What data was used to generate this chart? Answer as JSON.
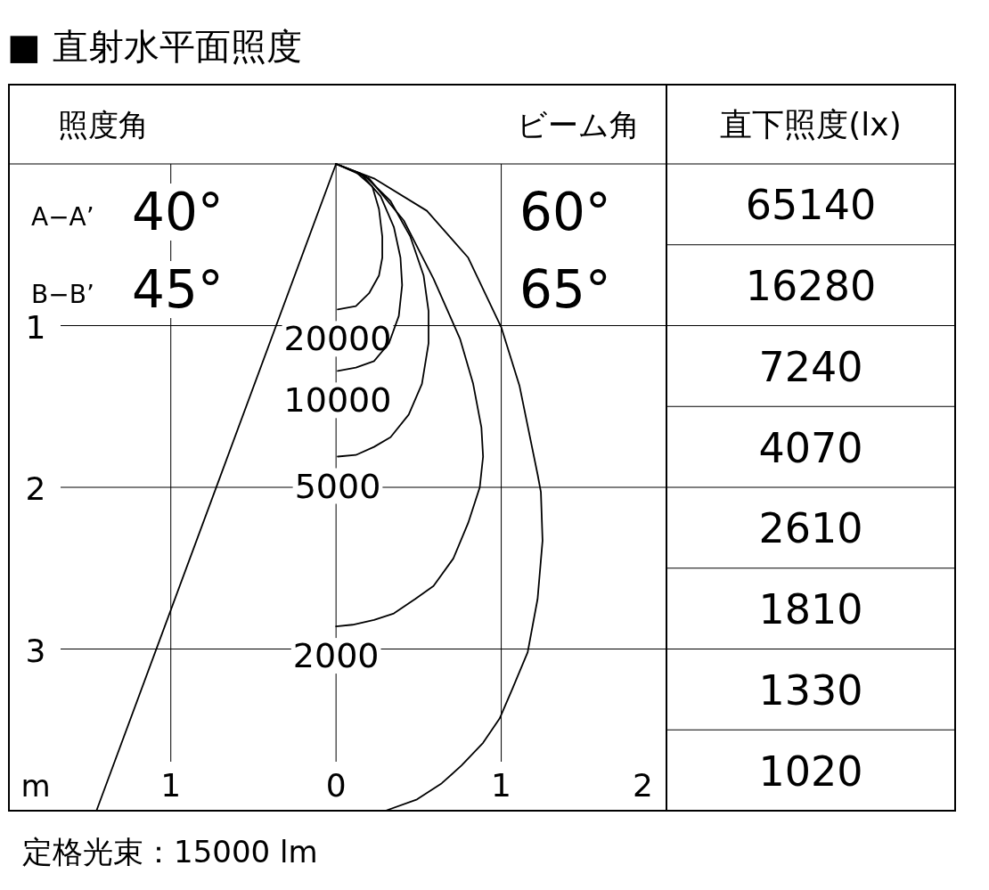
{
  "chart_data": [
    {
      "type": "line",
      "title": "■ 直射水平面照度",
      "xlabel": "m",
      "xlim": [
        -1.98,
        2
      ],
      "ylim": [
        4,
        0
      ],
      "xticks": [
        {
          "value": -1,
          "label": "1"
        },
        0,
        1,
        2
      ],
      "yticks": [
        1,
        2,
        3
      ],
      "grid": true,
      "series": [
        {
          "name": "20000",
          "color": "#000000",
          "x": [
            0,
            0.12,
            0.22,
            0.26,
            0.28,
            0.28,
            0.26,
            0.2,
            0.12,
            0.01
          ],
          "values": [
            0,
            0.05,
            0.14,
            0.28,
            0.45,
            0.58,
            0.69,
            0.8,
            0.88,
            0.9
          ]
        },
        {
          "name": "10000",
          "color": "#000000",
          "x": [
            0,
            0.15,
            0.27,
            0.35,
            0.39,
            0.4,
            0.38,
            0.32,
            0.23,
            0.12,
            0.01
          ],
          "values": [
            0,
            0.06,
            0.2,
            0.39,
            0.58,
            0.75,
            0.94,
            1.11,
            1.22,
            1.26,
            1.28
          ]
        },
        {
          "name": "5000",
          "color": "#000000",
          "x": [
            0,
            0.17,
            0.33,
            0.45,
            0.53,
            0.56,
            0.56,
            0.52,
            0.44,
            0.33,
            0.23,
            0.12,
            0.01
          ],
          "values": [
            0,
            0.07,
            0.23,
            0.45,
            0.69,
            0.91,
            1.11,
            1.36,
            1.55,
            1.69,
            1.75,
            1.8,
            1.81
          ]
        },
        {
          "name": "2000",
          "color": "#000000",
          "x": [
            0,
            0.2,
            0.41,
            0.59,
            0.75,
            0.83,
            0.88,
            0.89,
            0.87,
            0.8,
            0.71,
            0.59,
            0.48,
            0.35,
            0.23,
            0.1,
            0
          ],
          "values": [
            0,
            0.09,
            0.35,
            0.71,
            1.08,
            1.36,
            1.63,
            1.81,
            2.0,
            2.22,
            2.44,
            2.61,
            2.69,
            2.78,
            2.82,
            2.85,
            2.86
          ]
        },
        {
          "color": "#000000",
          "x": [
            0,
            0.23,
            0.55,
            0.8,
            1.0,
            1.11,
            1.22,
            1.24,
            1.25,
            1.22,
            1.16,
            1.07,
            0.99,
            0.89,
            0.76,
            0.64,
            0.49,
            0.3
          ],
          "values": [
            0,
            0.09,
            0.29,
            0.58,
            1.01,
            1.37,
            1.92,
            2.03,
            2.33,
            2.69,
            3.02,
            3.24,
            3.43,
            3.58,
            3.72,
            3.83,
            3.93,
            4.0
          ]
        },
        {
          "color": "#000000",
          "x": [
            0,
            -1.45
          ],
          "values": [
            0,
            4.0
          ]
        }
      ],
      "annotations": [
        "照度角",
        "ビーム角",
        "A−A’",
        "40°",
        "60°",
        "B−B’",
        "45°",
        "65°",
        "定格光束：15000 lm"
      ]
    },
    {
      "type": "other",
      "title": "直下照度(lx)",
      "data_labels": true,
      "values": [
        65140,
        16280,
        7240,
        4070,
        2610,
        1810,
        1330,
        1020
      ]
    }
  ]
}
